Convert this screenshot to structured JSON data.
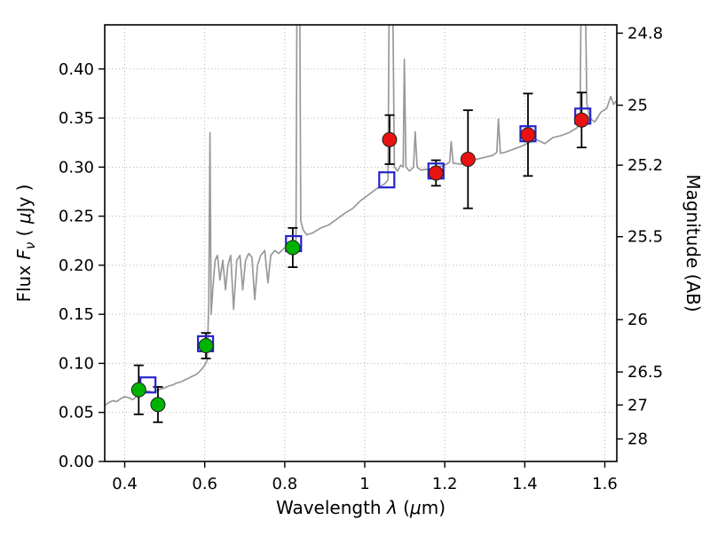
{
  "chart_data": {
    "type": "line",
    "title": "",
    "xlabel": "Wavelength λ (μm)",
    "ylabel_left": "Flux Fν ( μJy )",
    "ylabel_right": "Magnitude (AB)",
    "xlim": [
      0.35,
      1.63
    ],
    "ylim": [
      0.0,
      0.445
    ],
    "grid": "dotted",
    "legend": "none",
    "colors": {
      "spectrum": "#999999",
      "green_marker": "#00b300",
      "red_marker": "#e81212",
      "blue_square": "#2424cc",
      "grid_line": "#b3b3b3",
      "axis": "#000000",
      "error_bar": "#000000",
      "marker_edge": "#1f1f1f"
    },
    "x_ticks": {
      "values": [
        0.4,
        0.6,
        0.8,
        1.0,
        1.2,
        1.4,
        1.6
      ],
      "labels": [
        "0.4",
        "0.6",
        "0.8",
        "1",
        "1.2",
        "1.4",
        "1.6"
      ]
    },
    "y_ticks_left": {
      "values": [
        0.0,
        0.05,
        0.1,
        0.15,
        0.2,
        0.25,
        0.3,
        0.35,
        0.4
      ],
      "labels": [
        "0.00",
        "0.05",
        "0.10",
        "0.15",
        "0.20",
        "0.25",
        "0.30",
        "0.35",
        "0.40"
      ]
    },
    "y_ticks_right": {
      "values": [
        0.43652,
        0.36308,
        0.302,
        0.22909,
        0.14454,
        0.0912,
        0.05754,
        0.02291
      ],
      "labels": [
        "24.8",
        "25",
        "25.2",
        "25.5",
        "26",
        "26.5",
        "27",
        "28"
      ]
    },
    "xlabel_parts": [
      {
        "t": "Wavelength  ",
        "style": "normal"
      },
      {
        "t": "λ",
        "style": "italic"
      },
      {
        "t": " (",
        "style": "normal"
      },
      {
        "t": "μ",
        "style": "italic"
      },
      {
        "t": "m)",
        "style": "normal"
      }
    ],
    "ylabel_left_parts": [
      {
        "t": "Flux  ",
        "style": "normal"
      },
      {
        "t": "F",
        "style": "italic"
      },
      {
        "t": "ν",
        "style": "italic",
        "sub": true
      },
      {
        "t": "  ( ",
        "style": "normal"
      },
      {
        "t": "μ",
        "style": "italic"
      },
      {
        "t": "Jy )",
        "style": "normal"
      }
    ],
    "ylabel_right_parts": [
      {
        "t": "Magnitude (AB)",
        "style": "normal"
      }
    ],
    "series": [
      {
        "name": "model-spectrum",
        "style": "line",
        "color": "#999999",
        "points": [
          [
            0.35,
            0.057
          ],
          [
            0.36,
            0.06
          ],
          [
            0.37,
            0.062
          ],
          [
            0.38,
            0.061
          ],
          [
            0.39,
            0.064
          ],
          [
            0.4,
            0.066
          ],
          [
            0.41,
            0.065
          ],
          [
            0.42,
            0.063
          ],
          [
            0.43,
            0.066
          ],
          [
            0.44,
            0.069
          ],
          [
            0.45,
            0.071
          ],
          [
            0.46,
            0.072
          ],
          [
            0.47,
            0.07
          ],
          [
            0.48,
            0.072
          ],
          [
            0.49,
            0.074
          ],
          [
            0.5,
            0.075
          ],
          [
            0.51,
            0.077
          ],
          [
            0.52,
            0.078
          ],
          [
            0.53,
            0.08
          ],
          [
            0.54,
            0.081
          ],
          [
            0.55,
            0.083
          ],
          [
            0.56,
            0.085
          ],
          [
            0.57,
            0.087
          ],
          [
            0.58,
            0.089
          ],
          [
            0.59,
            0.093
          ],
          [
            0.6,
            0.098
          ],
          [
            0.606,
            0.103
          ],
          [
            0.61,
            0.16
          ],
          [
            0.613,
            0.335
          ],
          [
            0.616,
            0.15
          ],
          [
            0.62,
            0.175
          ],
          [
            0.626,
            0.205
          ],
          [
            0.632,
            0.21
          ],
          [
            0.638,
            0.185
          ],
          [
            0.645,
            0.205
          ],
          [
            0.652,
            0.175
          ],
          [
            0.658,
            0.2
          ],
          [
            0.665,
            0.21
          ],
          [
            0.672,
            0.155
          ],
          [
            0.68,
            0.205
          ],
          [
            0.688,
            0.21
          ],
          [
            0.695,
            0.175
          ],
          [
            0.702,
            0.205
          ],
          [
            0.71,
            0.212
          ],
          [
            0.718,
            0.208
          ],
          [
            0.725,
            0.165
          ],
          [
            0.732,
            0.2
          ],
          [
            0.74,
            0.21
          ],
          [
            0.75,
            0.215
          ],
          [
            0.758,
            0.182
          ],
          [
            0.765,
            0.21
          ],
          [
            0.775,
            0.215
          ],
          [
            0.785,
            0.212
          ],
          [
            0.795,
            0.216
          ],
          [
            0.805,
            0.22
          ],
          [
            0.815,
            0.217
          ],
          [
            0.823,
            0.22
          ],
          [
            0.828,
            0.226
          ],
          [
            0.831,
            0.52
          ],
          [
            0.837,
            0.52
          ],
          [
            0.84,
            0.245
          ],
          [
            0.846,
            0.236
          ],
          [
            0.855,
            0.231
          ],
          [
            0.87,
            0.233
          ],
          [
            0.89,
            0.238
          ],
          [
            0.91,
            0.241
          ],
          [
            0.93,
            0.247
          ],
          [
            0.95,
            0.253
          ],
          [
            0.97,
            0.258
          ],
          [
            0.99,
            0.266
          ],
          [
            1.01,
            0.272
          ],
          [
            1.03,
            0.278
          ],
          [
            1.05,
            0.283
          ],
          [
            1.058,
            0.287
          ],
          [
            1.062,
            0.55
          ],
          [
            1.068,
            0.55
          ],
          [
            1.074,
            0.3
          ],
          [
            1.082,
            0.296
          ],
          [
            1.09,
            0.302
          ],
          [
            1.096,
            0.3
          ],
          [
            1.099,
            0.41
          ],
          [
            1.103,
            0.3
          ],
          [
            1.112,
            0.296
          ],
          [
            1.122,
            0.3
          ],
          [
            1.126,
            0.336
          ],
          [
            1.131,
            0.3
          ],
          [
            1.14,
            0.297
          ],
          [
            1.16,
            0.298
          ],
          [
            1.18,
            0.3
          ],
          [
            1.2,
            0.302
          ],
          [
            1.212,
            0.305
          ],
          [
            1.216,
            0.326
          ],
          [
            1.221,
            0.304
          ],
          [
            1.24,
            0.303
          ],
          [
            1.26,
            0.306
          ],
          [
            1.28,
            0.308
          ],
          [
            1.3,
            0.31
          ],
          [
            1.32,
            0.312
          ],
          [
            1.33,
            0.315
          ],
          [
            1.334,
            0.349
          ],
          [
            1.339,
            0.314
          ],
          [
            1.35,
            0.315
          ],
          [
            1.37,
            0.318
          ],
          [
            1.39,
            0.321
          ],
          [
            1.41,
            0.325
          ],
          [
            1.43,
            0.328
          ],
          [
            1.45,
            0.324
          ],
          [
            1.47,
            0.33
          ],
          [
            1.49,
            0.332
          ],
          [
            1.51,
            0.335
          ],
          [
            1.53,
            0.34
          ],
          [
            1.538,
            0.346
          ],
          [
            1.542,
            0.52
          ],
          [
            1.547,
            0.47
          ],
          [
            1.55,
            0.52
          ],
          [
            1.555,
            0.365
          ],
          [
            1.562,
            0.35
          ],
          [
            1.575,
            0.346
          ],
          [
            1.59,
            0.356
          ],
          [
            1.605,
            0.36
          ],
          [
            1.615,
            0.372
          ],
          [
            1.622,
            0.364
          ],
          [
            1.63,
            0.368
          ]
        ]
      },
      {
        "name": "observed-photometry-green",
        "style": "scatter-circle",
        "color": "#00b300",
        "points": [
          {
            "x": 0.435,
            "y": 0.073,
            "yerr": 0.025
          },
          {
            "x": 0.483,
            "y": 0.058,
            "yerr": 0.018
          },
          {
            "x": 0.603,
            "y": 0.118,
            "yerr": 0.013
          },
          {
            "x": 0.82,
            "y": 0.218,
            "yerr": 0.02
          }
        ]
      },
      {
        "name": "observed-photometry-red",
        "style": "scatter-circle",
        "color": "#e81212",
        "points": [
          {
            "x": 1.062,
            "y": 0.328,
            "yerr": 0.025
          },
          {
            "x": 1.178,
            "y": 0.294,
            "yerr": 0.013
          },
          {
            "x": 1.258,
            "y": 0.308,
            "yerr": 0.05
          },
          {
            "x": 1.408,
            "y": 0.333,
            "yerr": 0.042
          },
          {
            "x": 1.542,
            "y": 0.348,
            "yerr": 0.028
          }
        ]
      },
      {
        "name": "model-photometry-squares",
        "style": "scatter-open-square",
        "color": "#2424cc",
        "points": [
          {
            "x": 0.458,
            "y": 0.078
          },
          {
            "x": 0.602,
            "y": 0.12
          },
          {
            "x": 0.822,
            "y": 0.222
          },
          {
            "x": 1.055,
            "y": 0.287
          },
          {
            "x": 1.178,
            "y": 0.296
          },
          {
            "x": 1.408,
            "y": 0.334
          },
          {
            "x": 1.545,
            "y": 0.352
          }
        ]
      }
    ]
  }
}
